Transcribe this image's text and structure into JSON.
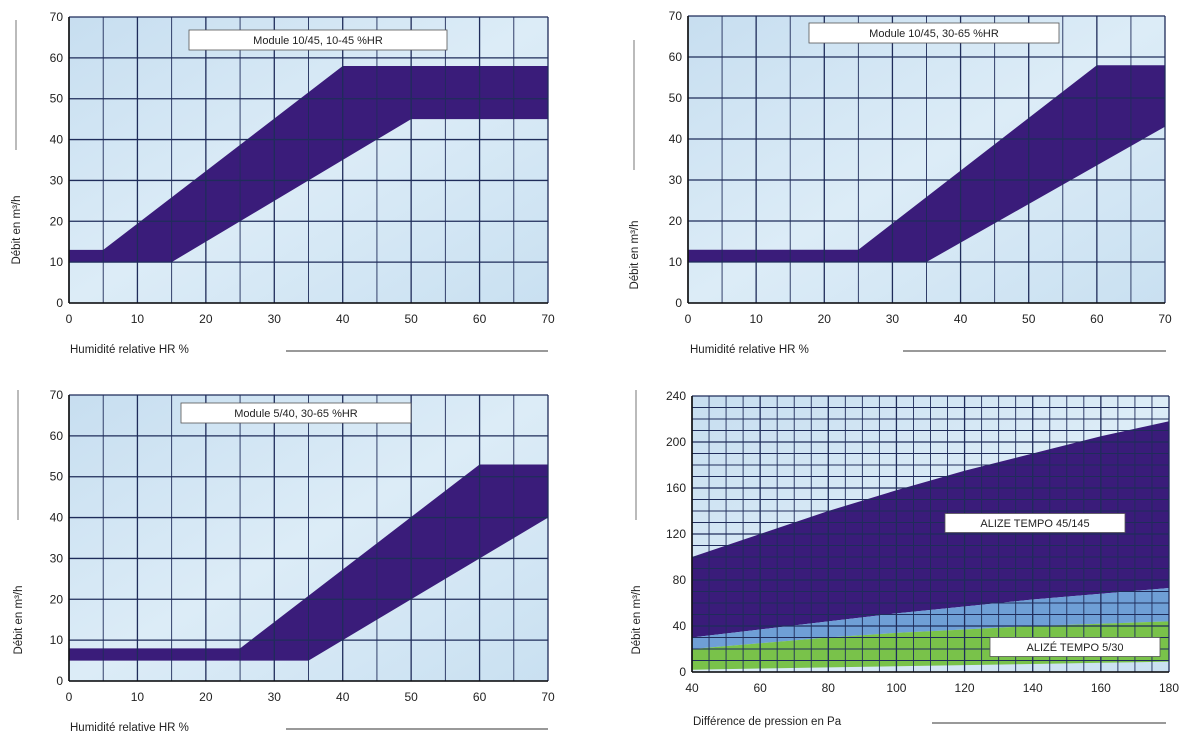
{
  "chart_data": [
    {
      "type": "area",
      "title": "Module 10/45, 10-45 %HR",
      "xlabel": "Humidité relative HR %",
      "ylabel": "Débit en m³/h",
      "xlim": [
        0,
        70
      ],
      "ylim": [
        0,
        70
      ],
      "xticks": [
        "0",
        "10",
        "20",
        "30",
        "40",
        "50",
        "60",
        "70"
      ],
      "yticks": [
        "0",
        "10",
        "20",
        "30",
        "40",
        "50",
        "60",
        "70"
      ],
      "grid": true,
      "band": {
        "upper": [
          [
            0,
            13
          ],
          [
            5,
            13
          ],
          [
            40,
            58
          ],
          [
            70,
            58
          ]
        ],
        "lower": [
          [
            0,
            10
          ],
          [
            15,
            10
          ],
          [
            50,
            45
          ],
          [
            70,
            45
          ]
        ]
      }
    },
    {
      "type": "area",
      "title": "Module 10/45, 30-65 %HR",
      "xlabel": "Humidité relative HR %",
      "ylabel": "Débit en m³/h",
      "xlim": [
        0,
        70
      ],
      "ylim": [
        0,
        70
      ],
      "xticks": [
        "0",
        "10",
        "20",
        "30",
        "40",
        "50",
        "60",
        "70"
      ],
      "yticks": [
        "0",
        "10",
        "20",
        "30",
        "40",
        "50",
        "60",
        "70"
      ],
      "grid": true,
      "band": {
        "upper": [
          [
            0,
            13
          ],
          [
            25,
            13
          ],
          [
            60,
            58
          ],
          [
            70,
            58
          ]
        ],
        "lower": [
          [
            0,
            10
          ],
          [
            35,
            10
          ],
          [
            70,
            43
          ]
        ]
      }
    },
    {
      "type": "area",
      "title": "Module 5/40, 30-65 %HR",
      "xlabel": "Humidité relative HR %",
      "ylabel": "Débit en m³/h",
      "xlim": [
        0,
        70
      ],
      "ylim": [
        0,
        70
      ],
      "xticks": [
        "0",
        "10",
        "20",
        "30",
        "40",
        "50",
        "60",
        "70"
      ],
      "yticks": [
        "0",
        "10",
        "20",
        "30",
        "40",
        "50",
        "60",
        "70"
      ],
      "grid": true,
      "band": {
        "upper": [
          [
            0,
            8
          ],
          [
            25,
            8
          ],
          [
            60,
            53
          ],
          [
            70,
            53
          ]
        ],
        "lower": [
          [
            0,
            5
          ],
          [
            35,
            5
          ],
          [
            70,
            40
          ]
        ]
      }
    },
    {
      "type": "area",
      "title": "",
      "xlabel": "Différence de pression en Pa",
      "ylabel": "Débit en m³/h",
      "xlim": [
        40,
        180
      ],
      "ylim": [
        0,
        240
      ],
      "xticks": [
        "40",
        "60",
        "80",
        "100",
        "120",
        "140",
        "160",
        "180"
      ],
      "yticks": [
        "0",
        "40",
        "80",
        "120",
        "160",
        "200",
        "240"
      ],
      "grid": true,
      "annotations": [
        "ALIZE TEMPO 45/145",
        "ALIZÉ TEMPO 5/30"
      ],
      "series": [
        {
          "name": "ALIZE TEMPO 45/145",
          "upper": [
            [
              40,
              100
            ],
            [
              60,
              120
            ],
            [
              80,
              140
            ],
            [
              100,
              158
            ],
            [
              120,
              175
            ],
            [
              140,
              190
            ],
            [
              160,
              205
            ],
            [
              180,
              218
            ]
          ],
          "lower": [
            [
              40,
              30
            ],
            [
              60,
              37
            ],
            [
              80,
              44
            ],
            [
              100,
              51
            ],
            [
              120,
              57
            ],
            [
              140,
              63
            ],
            [
              160,
              68
            ],
            [
              180,
              73
            ]
          ]
        },
        {
          "name": "",
          "upper": [
            [
              40,
              30
            ],
            [
              60,
              37
            ],
            [
              80,
              44
            ],
            [
              100,
              51
            ],
            [
              120,
              57
            ],
            [
              140,
              63
            ],
            [
              160,
              68
            ],
            [
              180,
              73
            ]
          ],
          "lower": [
            [
              40,
              20
            ],
            [
              60,
              25
            ],
            [
              80,
              30
            ],
            [
              100,
              34
            ],
            [
              120,
              37
            ],
            [
              140,
              40
            ],
            [
              160,
              42
            ],
            [
              180,
              44
            ]
          ]
        },
        {
          "name": "ALIZÉ TEMPO 5/30",
          "upper": [
            [
              40,
              20
            ],
            [
              60,
              25
            ],
            [
              80,
              30
            ],
            [
              100,
              34
            ],
            [
              120,
              37
            ],
            [
              140,
              40
            ],
            [
              160,
              42
            ],
            [
              180,
              44
            ]
          ],
          "lower": [
            [
              40,
              2
            ],
            [
              60,
              3
            ],
            [
              80,
              4
            ],
            [
              100,
              5
            ],
            [
              120,
              6
            ],
            [
              140,
              7
            ],
            [
              160,
              8
            ],
            [
              180,
              9
            ]
          ]
        }
      ]
    }
  ],
  "colors": {
    "background": "#d2e6f4",
    "grid": "#1f2c5a",
    "band": "#3a1c7a",
    "band_light": "#6f9fd6",
    "band_green": "#79c24a",
    "band_light_edge": "#4f7fc0"
  }
}
